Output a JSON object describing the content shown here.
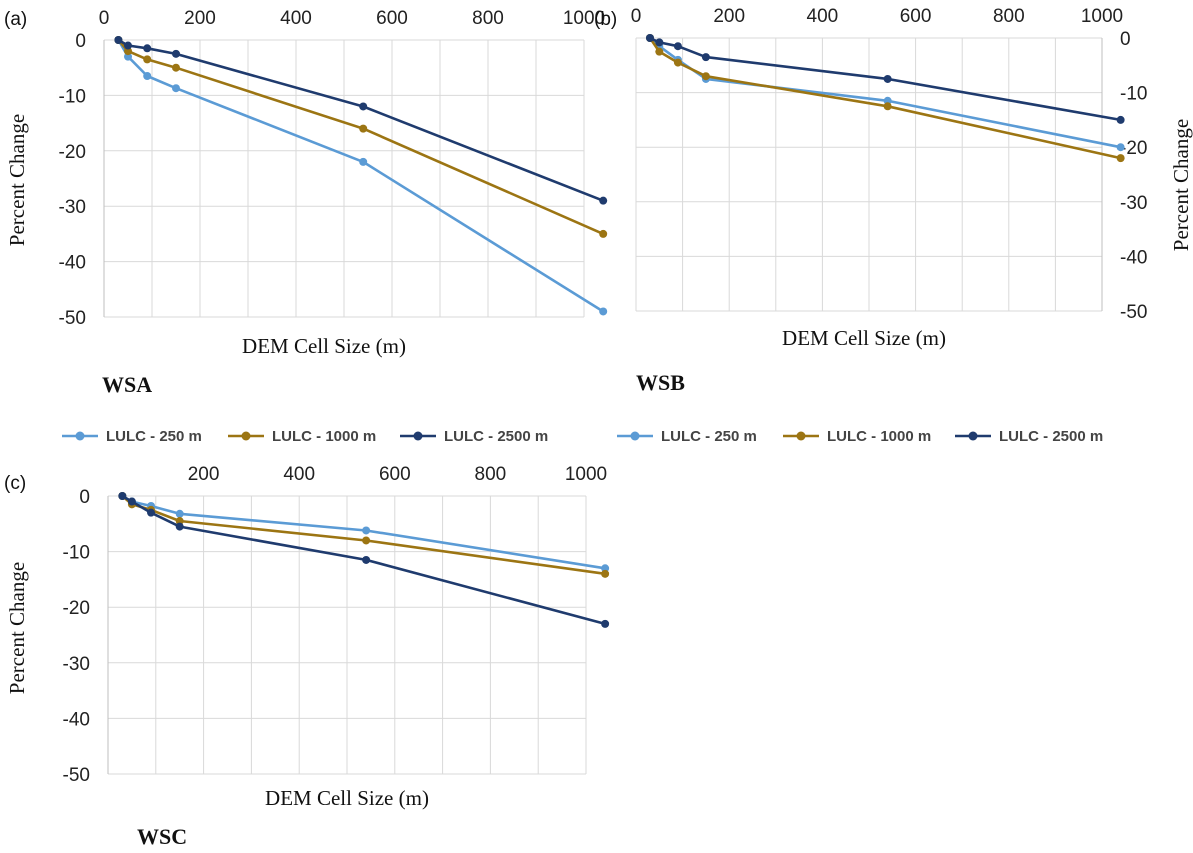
{
  "colors": {
    "lulc_250": "#5b9bd5",
    "lulc_1000": "#9c7513",
    "lulc_2500": "#1f3b6e",
    "grid": "#d9d9d9"
  },
  "legend_labels": [
    "LULC - 250 m",
    "LULC - 1000 m",
    "LULC - 2500 m"
  ],
  "chart_data": [
    {
      "type": "line",
      "panel_label": "(a)",
      "title": "WSA",
      "xlabel": "DEM Cell Size (m)",
      "ylabel": "Percent Change",
      "x_ticks": [
        "0",
        "200",
        "400",
        "600",
        "800",
        "1000"
      ],
      "y_ticks": [
        "0",
        "-10",
        "-20",
        "-30",
        "-40",
        "-50"
      ],
      "xlim": [
        0,
        1000
      ],
      "ylim": [
        -50,
        0
      ],
      "x_axis_position": "top",
      "y_axis_position": "left",
      "grid": true,
      "legend": "bottom",
      "series": [
        {
          "name": "LULC - 250 m",
          "x": [
            30,
            50,
            90,
            150,
            540,
            1040
          ],
          "y": [
            0,
            -3,
            -6.5,
            -8.7,
            -22,
            -49
          ]
        },
        {
          "name": "LULC - 1000 m",
          "x": [
            30,
            50,
            90,
            150,
            540,
            1040
          ],
          "y": [
            0,
            -2,
            -3.5,
            -5,
            -16,
            -35
          ]
        },
        {
          "name": "LULC - 2500 m",
          "x": [
            30,
            50,
            90,
            150,
            540,
            1040
          ],
          "y": [
            0,
            -1,
            -1.5,
            -2.5,
            -12,
            -29
          ]
        }
      ]
    },
    {
      "type": "line",
      "panel_label": "(b)",
      "title": "WSB",
      "xlabel": "DEM Cell Size (m)",
      "ylabel": "Percent Change",
      "x_ticks": [
        "0",
        "200",
        "400",
        "600",
        "800",
        "1000"
      ],
      "y_ticks": [
        "0",
        "-10",
        "-20",
        "-30",
        "-40",
        "-50"
      ],
      "xlim": [
        0,
        1000
      ],
      "ylim": [
        -50,
        0
      ],
      "x_axis_position": "top",
      "y_axis_position": "right",
      "grid": true,
      "legend": "bottom",
      "series": [
        {
          "name": "LULC - 250 m",
          "x": [
            30,
            50,
            90,
            150,
            540,
            1040
          ],
          "y": [
            0,
            -1.5,
            -4,
            -7.5,
            -11.5,
            -20
          ]
        },
        {
          "name": "LULC - 1000 m",
          "x": [
            30,
            50,
            90,
            150,
            540,
            1040
          ],
          "y": [
            0,
            -2.5,
            -4.5,
            -7,
            -12.5,
            -22
          ]
        },
        {
          "name": "LULC - 2500 m",
          "x": [
            30,
            50,
            90,
            150,
            540,
            1040
          ],
          "y": [
            0,
            -0.8,
            -1.5,
            -3.5,
            -7.5,
            -15
          ]
        }
      ]
    },
    {
      "type": "line",
      "panel_label": "(c)",
      "title": "WSC",
      "xlabel": "DEM Cell Size (m)",
      "ylabel": "Percent Change",
      "x_ticks": [
        "200",
        "400",
        "600",
        "800",
        "1000"
      ],
      "y_ticks": [
        "0",
        "-10",
        "-20",
        "-30",
        "-40",
        "-50"
      ],
      "xlim": [
        0,
        1000
      ],
      "ylim": [
        -50,
        0
      ],
      "x_axis_position": "top",
      "y_axis_position": "left",
      "grid": true,
      "series": [
        {
          "name": "LULC - 250 m",
          "x": [
            30,
            50,
            90,
            150,
            540,
            1040
          ],
          "y": [
            0,
            -1,
            -1.8,
            -3.2,
            -6.2,
            -13
          ]
        },
        {
          "name": "LULC - 1000 m",
          "x": [
            30,
            50,
            90,
            150,
            540,
            1040
          ],
          "y": [
            0,
            -1.5,
            -2.5,
            -4.5,
            -8,
            -14
          ]
        },
        {
          "name": "LULC - 2500 m",
          "x": [
            30,
            50,
            90,
            150,
            540,
            1040
          ],
          "y": [
            0,
            -1,
            -3,
            -5.5,
            -11.5,
            -23
          ]
        }
      ]
    }
  ]
}
